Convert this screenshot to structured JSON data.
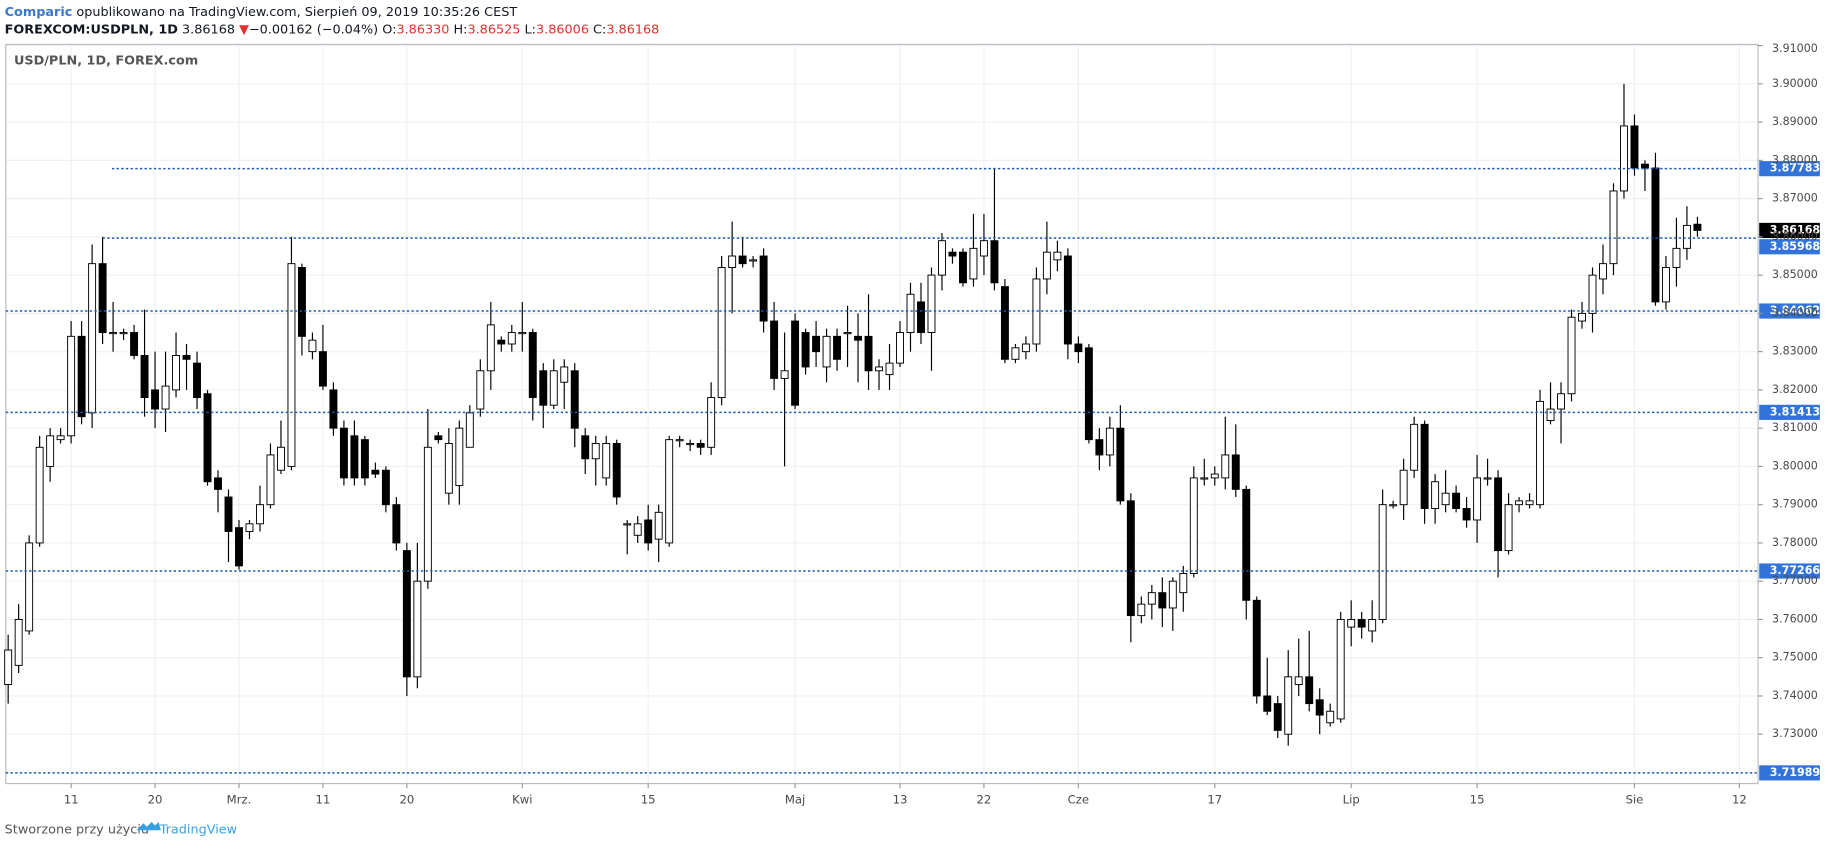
{
  "header": {
    "brand": "Comparic",
    "published": "opublikowano na TradingView.com, Sierpień 09, 2019 10:35:26 CEST",
    "symbol": "FOREXCOM:USDPLN, 1D",
    "last": "3.86168",
    "arrow": "▼",
    "change": "−0.00162 (−0.04%)",
    "ohlc": [
      {
        "key": "O:",
        "value": "3.86330"
      },
      {
        "key": "H:",
        "value": "3.86525"
      },
      {
        "key": "L:",
        "value": "3.86006"
      },
      {
        "key": "C:",
        "value": "3.86168"
      }
    ]
  },
  "footer": {
    "text": "Stworzone przy użyciu",
    "brand": "TradingView"
  },
  "chart_data": {
    "type": "candlestick",
    "title": "USD/PLN, 1D, FOREX.com",
    "categories": [
      null,
      null,
      null,
      null,
      null,
      null,
      "11",
      null,
      null,
      null,
      null,
      null,
      null,
      null,
      "20",
      null,
      null,
      null,
      null,
      null,
      null,
      null,
      "Mrz.",
      null,
      null,
      null,
      null,
      null,
      null,
      null,
      "11",
      null,
      null,
      null,
      null,
      null,
      null,
      null,
      "20",
      null,
      null,
      null,
      null,
      null,
      null,
      null,
      null,
      null,
      null,
      "Kwi",
      null,
      null,
      null,
      null,
      null,
      null,
      null,
      null,
      null,
      null,
      null,
      "15",
      null,
      null,
      null,
      null,
      null,
      null,
      null,
      null,
      null,
      null,
      null,
      null,
      null,
      "Maj",
      null,
      null,
      null,
      null,
      null,
      null,
      null,
      null,
      null,
      "13",
      null,
      null,
      null,
      null,
      null,
      null,
      null,
      "22",
      null,
      null,
      null,
      null,
      null,
      null,
      null,
      null,
      "Cze",
      null,
      null,
      null,
      null,
      null,
      null,
      null,
      null,
      null,
      null,
      null,
      null,
      "17",
      null,
      null,
      null,
      null,
      null,
      null,
      null,
      null,
      null,
      null,
      null,
      null,
      "Lip",
      null,
      null,
      null,
      null,
      null,
      null,
      null,
      null,
      null,
      null,
      null,
      "15",
      null,
      null,
      null,
      null,
      null,
      null,
      null,
      null,
      null,
      null,
      null,
      null,
      null,
      null,
      "Sie",
      null,
      null,
      null,
      null,
      null,
      null,
      null,
      null,
      null,
      "12"
    ],
    "open": [
      3.743,
      3.748,
      3.757,
      3.78,
      3.8,
      3.807,
      3.808,
      3.834,
      3.814,
      3.853,
      3.835,
      3.835,
      3.835,
      3.829,
      3.82,
      3.815,
      3.82,
      3.829,
      3.827,
      3.819,
      3.797,
      3.792,
      3.784,
      3.783,
      3.785,
      3.79,
      3.799,
      3.8,
      3.852,
      3.83,
      3.83,
      3.82,
      3.81,
      3.808,
      3.807,
      3.799,
      3.799,
      3.79,
      3.778,
      3.745,
      3.77,
      3.808,
      3.793,
      3.795,
      3.805,
      3.815,
      3.825,
      3.833,
      3.832,
      3.835,
      3.835,
      3.825,
      3.816,
      3.822,
      3.825,
      3.808,
      3.802,
      3.797,
      3.806,
      3.785,
      3.782,
      3.786,
      3.781,
      3.78,
      3.807,
      3.806,
      3.806,
      3.805,
      3.818,
      3.852,
      3.855,
      3.854,
      3.855,
      3.838,
      3.823,
      3.838,
      3.835,
      3.834,
      3.826,
      3.834,
      3.835,
      3.834,
      3.834,
      3.825,
      3.824,
      3.827,
      3.835,
      3.843,
      3.835,
      3.85,
      3.856,
      3.856,
      3.849,
      3.855,
      3.859,
      3.847,
      3.828,
      3.83,
      3.832,
      3.849,
      3.854,
      3.855,
      3.832,
      3.831,
      3.807,
      3.803,
      3.81,
      3.791,
      3.761,
      3.764,
      3.767,
      3.763,
      3.767,
      3.772,
      3.797,
      3.797,
      3.797,
      3.803,
      3.794,
      3.765,
      3.74,
      3.738,
      3.73,
      3.743,
      3.745,
      3.739,
      3.733,
      3.734,
      3.758,
      3.76,
      3.757,
      3.76,
      3.79,
      3.79,
      3.799,
      3.811,
      3.789,
      3.79,
      3.793,
      3.789,
      3.786,
      3.797,
      3.797,
      3.778,
      3.79,
      3.79,
      3.79,
      3.812,
      3.815,
      3.819,
      3.838,
      3.84,
      3.849,
      3.853,
      3.872,
      3.889,
      3.879,
      3.878,
      3.843,
      3.852,
      3.857,
      3.8633,
      null,
      null,
      null,
      null
    ],
    "high": [
      3.756,
      3.764,
      3.782,
      3.808,
      3.81,
      3.81,
      3.838,
      3.838,
      3.858,
      3.86,
      3.843,
      3.836,
      3.837,
      3.841,
      3.83,
      3.83,
      3.835,
      3.832,
      3.83,
      3.82,
      3.799,
      3.794,
      3.786,
      3.786,
      3.795,
      3.806,
      3.812,
      3.86,
      3.853,
      3.835,
      3.837,
      3.822,
      3.812,
      3.812,
      3.808,
      3.801,
      3.8,
      3.792,
      3.78,
      3.78,
      3.815,
      3.809,
      3.81,
      3.812,
      3.816,
      3.828,
      3.843,
      3.834,
      3.837,
      3.843,
      3.836,
      3.827,
      3.828,
      3.828,
      3.827,
      3.81,
      3.808,
      3.808,
      3.807,
      3.786,
      3.787,
      3.79,
      3.79,
      3.808,
      3.808,
      3.807,
      3.807,
      3.822,
      3.855,
      3.864,
      3.86,
      3.855,
      3.857,
      3.843,
      3.835,
      3.84,
      3.836,
      3.838,
      3.836,
      3.836,
      3.842,
      3.84,
      3.845,
      3.828,
      3.832,
      3.838,
      3.848,
      3.848,
      3.852,
      3.861,
      3.857,
      3.857,
      3.866,
      3.866,
      3.878,
      3.849,
      3.832,
      3.834,
      3.852,
      3.864,
      3.859,
      3.857,
      3.834,
      3.832,
      3.81,
      3.813,
      3.816,
      3.793,
      3.766,
      3.769,
      3.771,
      3.771,
      3.774,
      3.8,
      3.802,
      3.8,
      3.813,
      3.811,
      3.795,
      3.766,
      3.75,
      3.74,
      3.752,
      3.755,
      3.757,
      3.742,
      3.738,
      3.762,
      3.765,
      3.762,
      3.765,
      3.794,
      3.791,
      3.802,
      3.813,
      3.812,
      3.798,
      3.799,
      3.795,
      3.792,
      3.803,
      3.802,
      3.799,
      3.793,
      3.792,
      3.793,
      3.82,
      3.822,
      3.822,
      3.841,
      3.843,
      3.852,
      3.858,
      3.874,
      3.9,
      3.892,
      3.88,
      3.882,
      3.855,
      3.865,
      3.868,
      3.86525,
      null,
      null,
      null,
      null
    ],
    "low": [
      3.738,
      3.746,
      3.756,
      3.779,
      3.796,
      3.806,
      3.806,
      3.811,
      3.81,
      3.832,
      3.83,
      3.833,
      3.828,
      3.813,
      3.81,
      3.809,
      3.818,
      3.82,
      3.815,
      3.795,
      3.788,
      3.775,
      3.773,
      3.781,
      3.783,
      3.789,
      3.798,
      3.799,
      3.829,
      3.828,
      3.82,
      3.808,
      3.795,
      3.795,
      3.795,
      3.797,
      3.788,
      3.778,
      3.74,
      3.742,
      3.768,
      3.806,
      3.79,
      3.79,
      3.805,
      3.813,
      3.82,
      3.83,
      3.83,
      3.83,
      3.812,
      3.81,
      3.815,
      3.815,
      3.805,
      3.798,
      3.795,
      3.795,
      3.79,
      3.777,
      3.78,
      3.778,
      3.775,
      3.779,
      3.805,
      3.804,
      3.803,
      3.803,
      3.816,
      3.84,
      3.852,
      3.852,
      3.835,
      3.82,
      3.8,
      3.815,
      3.824,
      3.826,
      3.822,
      3.825,
      3.826,
      3.822,
      3.82,
      3.82,
      3.82,
      3.826,
      3.83,
      3.832,
      3.825,
      3.846,
      3.853,
      3.847,
      3.847,
      3.85,
      3.846,
      3.827,
      3.827,
      3.828,
      3.83,
      3.845,
      3.851,
      3.828,
      3.827,
      3.806,
      3.799,
      3.8,
      3.79,
      3.754,
      3.759,
      3.76,
      3.758,
      3.757,
      3.762,
      3.771,
      3.795,
      3.795,
      3.794,
      3.792,
      3.76,
      3.738,
      3.735,
      3.729,
      3.727,
      3.74,
      3.736,
      3.73,
      3.732,
      3.733,
      3.753,
      3.755,
      3.754,
      3.759,
      3.789,
      3.786,
      3.797,
      3.785,
      3.785,
      3.788,
      3.788,
      3.784,
      3.78,
      3.795,
      3.771,
      3.777,
      3.788,
      3.789,
      3.789,
      3.811,
      3.806,
      3.817,
      3.836,
      3.835,
      3.845,
      3.85,
      3.87,
      3.876,
      3.872,
      3.842,
      3.841,
      3.847,
      3.854,
      3.86006,
      null,
      null,
      null,
      null
    ],
    "close": [
      3.752,
      3.76,
      3.78,
      3.805,
      3.808,
      3.808,
      3.834,
      3.813,
      3.853,
      3.835,
      3.835,
      3.835,
      3.829,
      3.818,
      3.815,
      3.821,
      3.829,
      3.828,
      3.818,
      3.796,
      3.794,
      3.783,
      3.774,
      3.785,
      3.79,
      3.803,
      3.805,
      3.853,
      3.834,
      3.833,
      3.821,
      3.81,
      3.797,
      3.797,
      3.797,
      3.798,
      3.79,
      3.78,
      3.745,
      3.77,
      3.805,
      3.807,
      3.806,
      3.81,
      3.814,
      3.825,
      3.837,
      3.832,
      3.835,
      3.835,
      3.818,
      3.816,
      3.825,
      3.826,
      3.81,
      3.802,
      3.806,
      3.806,
      3.792,
      3.785,
      3.785,
      3.78,
      3.788,
      3.807,
      3.807,
      3.806,
      3.805,
      3.818,
      3.852,
      3.855,
      3.853,
      3.854,
      3.838,
      3.823,
      3.825,
      3.816,
      3.826,
      3.83,
      3.834,
      3.828,
      3.835,
      3.833,
      3.825,
      3.826,
      3.827,
      3.835,
      3.845,
      3.835,
      3.85,
      3.859,
      3.855,
      3.848,
      3.857,
      3.859,
      3.848,
      3.828,
      3.831,
      3.832,
      3.849,
      3.856,
      3.856,
      3.832,
      3.83,
      3.807,
      3.803,
      3.81,
      3.791,
      3.761,
      3.764,
      3.767,
      3.763,
      3.77,
      3.772,
      3.797,
      3.797,
      3.798,
      3.803,
      3.794,
      3.765,
      3.74,
      3.736,
      3.731,
      3.745,
      3.745,
      3.738,
      3.735,
      3.736,
      3.76,
      3.76,
      3.758,
      3.76,
      3.79,
      3.79,
      3.799,
      3.811,
      3.789,
      3.796,
      3.793,
      3.789,
      3.786,
      3.797,
      3.797,
      3.778,
      3.79,
      3.791,
      3.791,
      3.817,
      3.815,
      3.819,
      3.839,
      3.84,
      3.85,
      3.853,
      3.872,
      3.889,
      3.878,
      3.878,
      3.843,
      3.852,
      3.857,
      3.863,
      3.86168,
      null,
      null,
      null,
      null
    ],
    "ylim": [
      3.7171,
      3.9103
    ],
    "yticks": [
      {
        "value": 3.73,
        "label": "3.73000"
      },
      {
        "value": 3.74,
        "label": "3.74000"
      },
      {
        "value": 3.75,
        "label": "3.75000"
      },
      {
        "value": 3.76,
        "label": "3.76000"
      },
      {
        "value": 3.77,
        "label": "3.77000"
      },
      {
        "value": 3.78,
        "label": "3.78000"
      },
      {
        "value": 3.79,
        "label": "3.79000"
      },
      {
        "value": 3.8,
        "label": "3.80000"
      },
      {
        "value": 3.81,
        "label": "3.81000"
      },
      {
        "value": 3.82,
        "label": "3.82000"
      },
      {
        "value": 3.83,
        "label": "3.83000"
      },
      {
        "value": 3.84,
        "label": "3.84000"
      },
      {
        "value": 3.85,
        "label": "3.85000"
      },
      {
        "value": 3.86,
        "label": "3.86000"
      },
      {
        "value": 3.87,
        "label": "3.87000"
      },
      {
        "value": 3.88,
        "label": "3.88000"
      },
      {
        "value": 3.89,
        "label": "3.89000"
      },
      {
        "value": 3.9,
        "label": "3.90000"
      },
      {
        "value": 3.91,
        "label": "3.91000"
      }
    ],
    "levels": [
      3.87783,
      3.85968,
      3.84062,
      3.81413,
      3.77266,
      3.71989
    ],
    "grid": true,
    "up_color": "#ffffff",
    "down_color": "#000000",
    "level_color": "#1c5bb0"
  }
}
